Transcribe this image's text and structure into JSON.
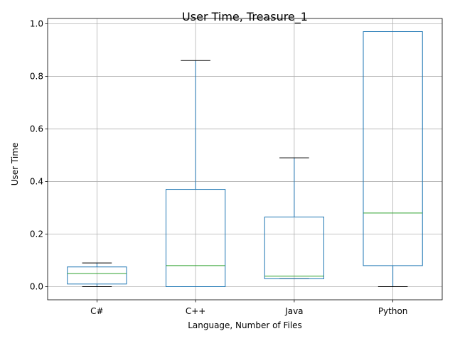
{
  "chart_data": {
    "type": "box",
    "title": "User Time, Treasure_1",
    "xlabel": "Language, Number of Files",
    "ylabel": "User Time",
    "ylim": [
      -0.05,
      1.02
    ],
    "yticks": [
      0.0,
      0.2,
      0.4,
      0.6,
      0.8,
      1.0
    ],
    "ytick_labels": [
      "0.0",
      "0.2",
      "0.4",
      "0.6",
      "0.8",
      "1.0"
    ],
    "grid": true,
    "categories": [
      "C#",
      "C++",
      "Java",
      "Python"
    ],
    "boxes": [
      {
        "category": "C#",
        "whisker_low": 0.0,
        "q1": 0.01,
        "median": 0.05,
        "q3": 0.075,
        "whisker_high": 0.09
      },
      {
        "category": "C++",
        "whisker_low": 0.0,
        "q1": 0.0,
        "median": 0.08,
        "q3": 0.37,
        "whisker_high": 0.86
      },
      {
        "category": "Java",
        "whisker_low": 0.03,
        "q1": 0.03,
        "median": 0.04,
        "q3": 0.265,
        "whisker_high": 0.49
      },
      {
        "category": "Python",
        "whisker_low": 0.0,
        "q1": 0.08,
        "median": 0.28,
        "q3": 0.97,
        "whisker_high": 0.97
      }
    ],
    "colors": {
      "box": "#1f77b4",
      "median": "#2ca02c",
      "cap": "#000000",
      "grid": "#b0b0b0"
    }
  }
}
